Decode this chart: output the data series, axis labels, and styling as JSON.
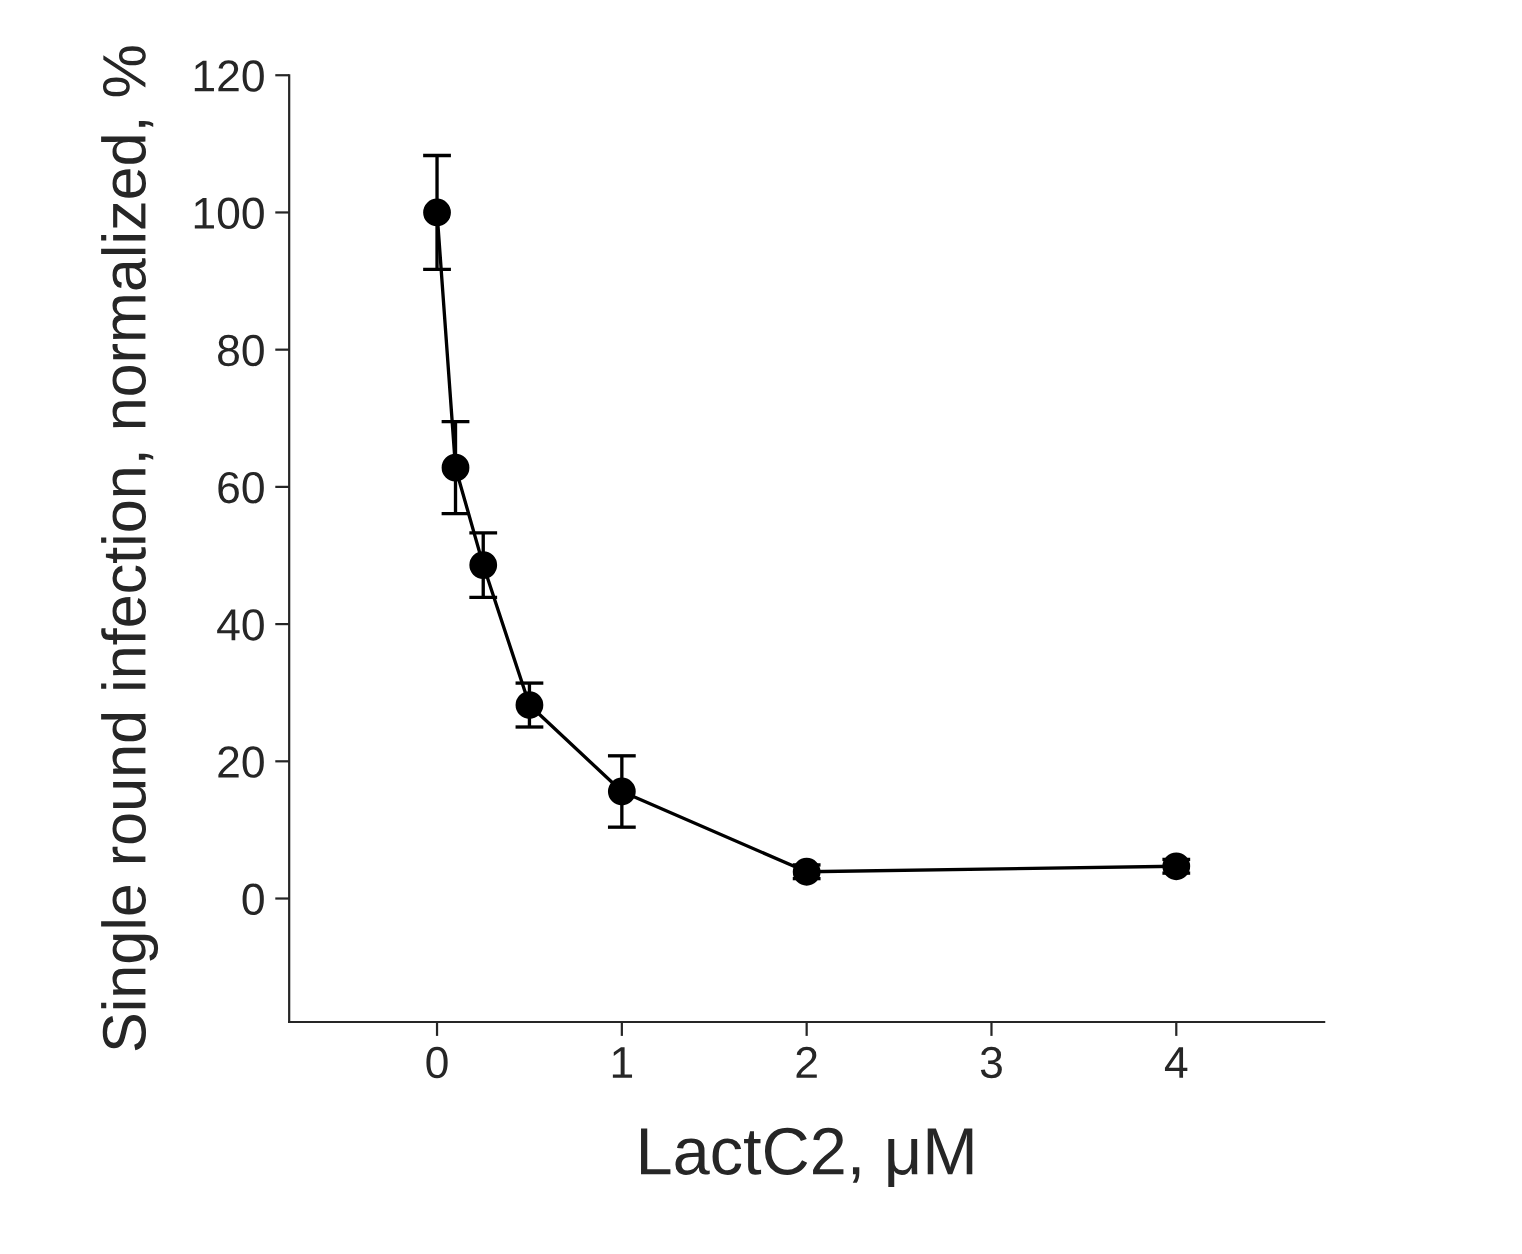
{
  "chart_data": {
    "type": "line",
    "xlabel": "LactC2, μM",
    "ylabel": "Single round infection, normalized, %",
    "x": [
      0,
      0.1,
      0.25,
      0.5,
      1,
      2,
      4
    ],
    "values": [
      100,
      62.8,
      48.6,
      28.2,
      15.6,
      3.9,
      4.7
    ],
    "errors": [
      8.3,
      6.7,
      4.7,
      3.2,
      5.2,
      1,
      1
    ],
    "color": "#000000",
    "marker": "circle",
    "line_style": "solid",
    "grid": false,
    "xlim": [
      -0.8,
      4.8
    ],
    "xticks": [
      0,
      1,
      2,
      3,
      4
    ],
    "ylim": [
      -18,
      120
    ],
    "yticks": [
      0,
      20,
      40,
      60,
      80,
      100,
      120
    ]
  }
}
